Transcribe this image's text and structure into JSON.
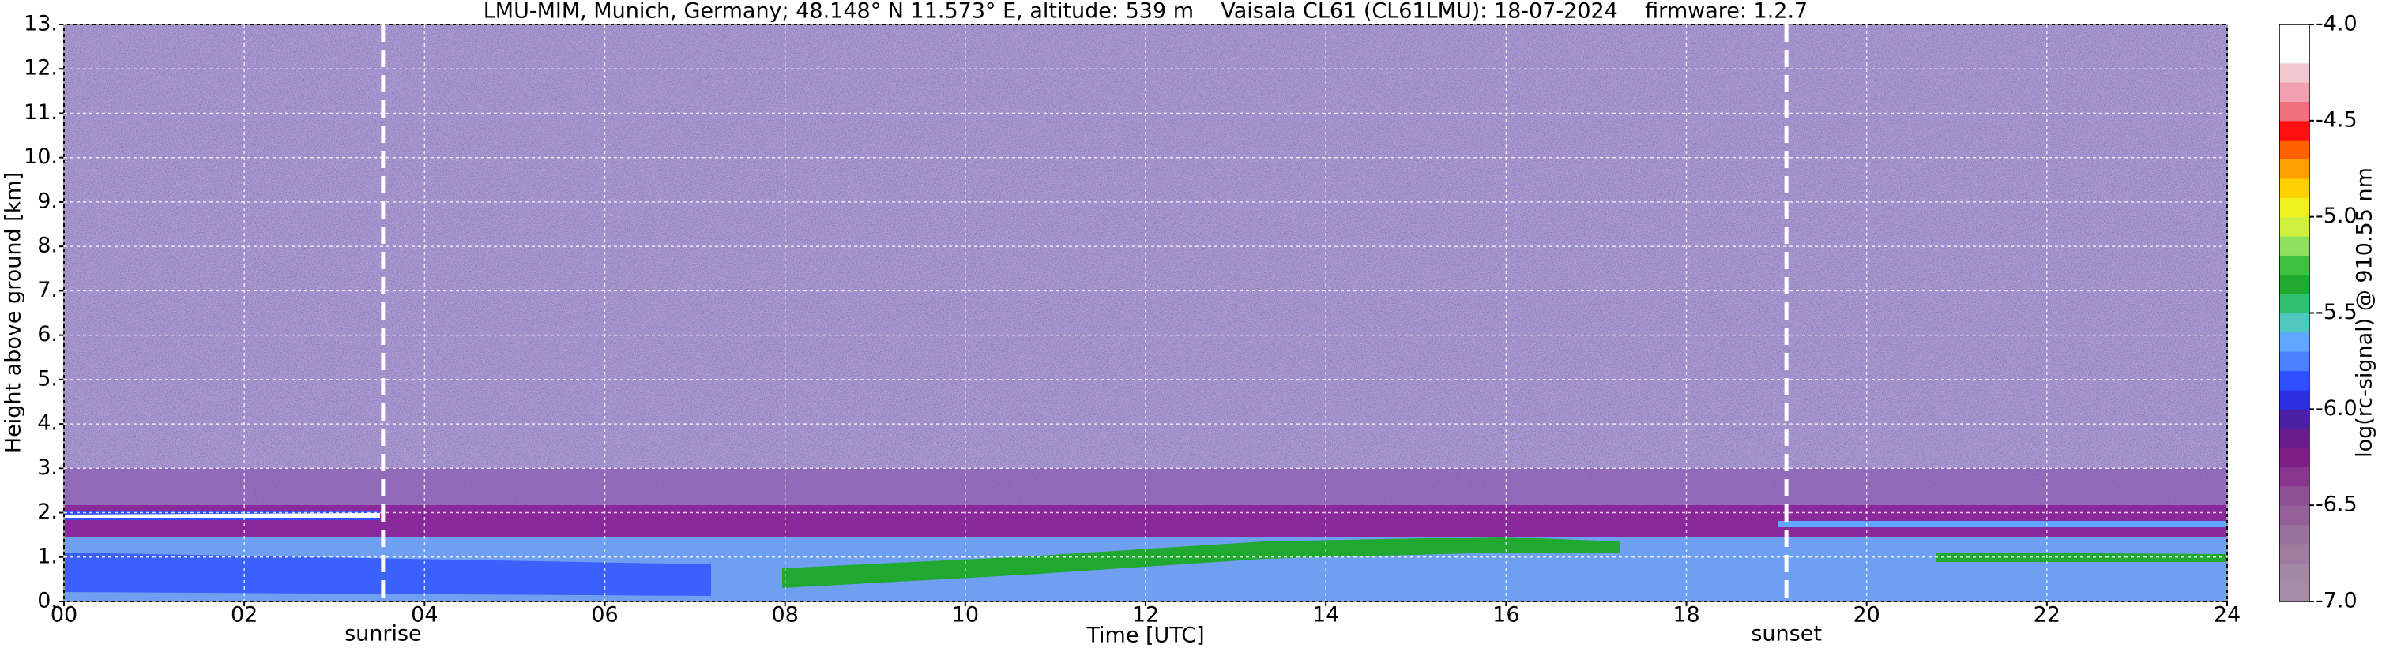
{
  "chart_data": {
    "type": "heatmap",
    "title": "LMU-MIM, Munich, Germany; 48.148° N 11.573° E, altitude: 539 m    Vaisala CL61 (CL61LMU): 18-07-2024    firmware: 1.2.7",
    "x_label": "Time [UTC]",
    "y_label": "Height above ground [km]",
    "xlim": [
      0,
      24
    ],
    "xticks": [
      {
        "value": 0,
        "label": "00"
      },
      {
        "value": 2,
        "label": "02"
      },
      {
        "value": 4,
        "label": "04"
      },
      {
        "value": 6,
        "label": "06"
      },
      {
        "value": 8,
        "label": "08"
      },
      10,
      12,
      14,
      16,
      18,
      20,
      22,
      24
    ],
    "ylim": [
      0,
      13
    ],
    "yticks": [
      {
        "value": 0,
        "label": "0."
      },
      {
        "value": 1,
        "label": "1."
      },
      {
        "value": 2,
        "label": "2."
      },
      {
        "value": 3,
        "label": "3."
      },
      {
        "value": 4,
        "label": "4."
      },
      {
        "value": 5,
        "label": "5."
      },
      {
        "value": 6,
        "label": "6."
      },
      {
        "value": 7,
        "label": "7."
      },
      {
        "value": 8,
        "label": "8."
      },
      {
        "value": 9,
        "label": "9."
      },
      {
        "value": 10,
        "label": "10."
      },
      {
        "value": 11,
        "label": "11."
      },
      {
        "value": 12,
        "label": "12."
      },
      {
        "value": 13,
        "label": "13."
      }
    ],
    "grid": true,
    "annotations": [
      {
        "x": 3.54,
        "label": "sunrise"
      },
      {
        "x": 19.11,
        "label": "sunset"
      }
    ],
    "colorbar_label": "log(rc-signal) @ 910.55 nm",
    "clim": [
      -7,
      -4
    ],
    "cticks": [
      {
        "value": -7,
        "label": "-7.0"
      },
      -6.5,
      {
        "value": -6,
        "label": "-6.0"
      },
      -5.5,
      {
        "value": -5,
        "label": "-5.0"
      },
      -4.5,
      {
        "value": -4,
        "label": "-4.0"
      }
    ],
    "colorbar_colors": [
      "#a98da8",
      "#a488a6",
      "#9f7da0",
      "#9a709c",
      "#955f98",
      "#8f4f93",
      "#89368e",
      "#7f1d86",
      "#6a1a8a",
      "#4a1fa0",
      "#2a30e0",
      "#3050ff",
      "#4a80ff",
      "#60a8ff",
      "#50c8c0",
      "#30c070",
      "#20a830",
      "#40c040",
      "#90e060",
      "#d0f040",
      "#f0f020",
      "#ffd000",
      "#ffa000",
      "#ff6000",
      "#ff1010",
      "#f07080",
      "#f0a0b0",
      "#f0c8d0",
      "#ffffff",
      "#ffffff"
    ]
  }
}
